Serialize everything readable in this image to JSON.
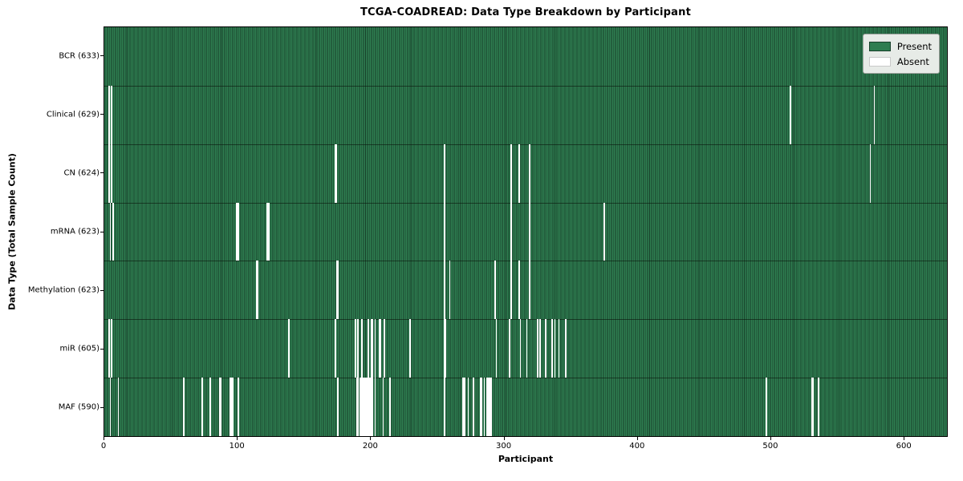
{
  "figure": {
    "title": "TCGA-COADREAD: Data Type Breakdown by Participant",
    "xlabel": "Participant",
    "ylabel": "Data Type (Total Sample Count)"
  },
  "legend": {
    "present_label": "Present",
    "absent_label": "Absent"
  },
  "colors": {
    "present": "#2e7d50",
    "bar_edge": "#18402a",
    "absent": "#ffffff",
    "legend_bg": "#e7ebe7",
    "legend_border": "#9aa09a",
    "axis": "#000000"
  },
  "chart_data": {
    "type": "heatmap",
    "title": "TCGA-COADREAD: Data Type Breakdown by Participant",
    "xlabel": "Participant",
    "ylabel": "Data Type (Total Sample Count)",
    "legend_position": "upper right",
    "legend_entries": [
      {
        "label": "Present",
        "color": "#2e7d50"
      },
      {
        "label": "Absent",
        "color": "#ffffff"
      }
    ],
    "x_axis": {
      "min": 0,
      "max": 633,
      "ticks": [
        0,
        100,
        200,
        300,
        400,
        500,
        600
      ]
    },
    "total_participants": 633,
    "rows": [
      {
        "name": "BCR",
        "total": 633,
        "absent_participants": []
      },
      {
        "name": "Clinical",
        "total": 629,
        "absent_participants": [
          3,
          5,
          515,
          578
        ]
      },
      {
        "name": "CN",
        "total": 624,
        "absent_participants": [
          3,
          5,
          173,
          174,
          255,
          305,
          311,
          319,
          575
        ]
      },
      {
        "name": "mRNA",
        "total": 623,
        "absent_participants": [
          4,
          6,
          99,
          100,
          122,
          123,
          255,
          305,
          319,
          375
        ]
      },
      {
        "name": "Methylation",
        "total": 623,
        "absent_participants": [
          114,
          115,
          174,
          175,
          255,
          259,
          293,
          305,
          311,
          319
        ]
      },
      {
        "name": "miR",
        "total": 605,
        "absent_participants": [
          3,
          5,
          138,
          173,
          188,
          190,
          193,
          198,
          200,
          201,
          203,
          206,
          207,
          210,
          229,
          255,
          256,
          294,
          304,
          312,
          317,
          325,
          327,
          331,
          336,
          338,
          341,
          346
        ]
      },
      {
        "name": "MAF",
        "total": 590,
        "absent_participants": [
          4,
          10,
          59,
          73,
          79,
          86,
          87,
          94,
          95,
          96,
          100,
          175,
          189,
          190,
          192,
          193,
          194,
          195,
          196,
          197,
          198,
          199,
          200,
          201,
          203,
          209,
          214,
          255,
          269,
          270,
          273,
          277,
          282,
          283,
          285,
          287,
          288,
          289,
          290,
          497,
          531,
          532,
          536
        ]
      }
    ]
  }
}
